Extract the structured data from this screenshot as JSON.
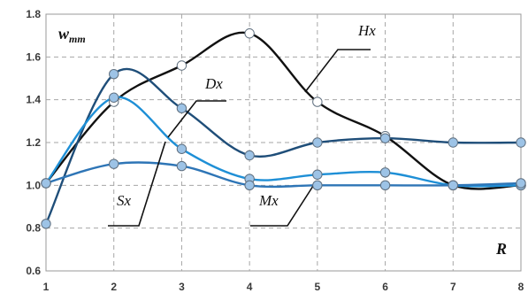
{
  "chart_data": {
    "type": "line",
    "title": "",
    "xlabel": "R",
    "ylabel": {
      "main": "w",
      "sub": "mm"
    },
    "xlim": [
      1,
      8
    ],
    "ylim": [
      0.6,
      1.8
    ],
    "x": [
      1,
      2,
      3,
      4,
      5,
      6,
      7,
      8
    ],
    "x_ticks": [
      "1",
      "2",
      "3",
      "4",
      "5",
      "6",
      "7",
      "8"
    ],
    "y_ticks": [
      "0.6",
      "0.8",
      "1.0",
      "1.2",
      "1.4",
      "1.6",
      "1.8"
    ],
    "grid": {
      "vertical": true,
      "horizontal": true,
      "style": "dashed"
    },
    "series": [
      {
        "name": "Hx",
        "color": "#111111",
        "marker": "#ffffff",
        "values": [
          1.01,
          1.39,
          1.56,
          1.71,
          1.39,
          1.23,
          1.0,
          1.0
        ]
      },
      {
        "name": "Dx",
        "color": "#1f4e79",
        "marker": "#9dc3e6",
        "values": [
          0.82,
          1.52,
          1.36,
          1.14,
          1.2,
          1.22,
          1.2,
          1.2
        ]
      },
      {
        "name": "Sx",
        "color": "#1e8fd6",
        "marker": "#9dc3e6",
        "values": [
          1.01,
          1.41,
          1.17,
          1.03,
          1.05,
          1.06,
          1.0,
          1.0
        ]
      },
      {
        "name": "Mx",
        "color": "#2e75b6",
        "marker": "#9dc3e6",
        "values": [
          1.01,
          1.1,
          1.09,
          1.0,
          1.0,
          1.0,
          1.0,
          1.01
        ]
      }
    ]
  }
}
